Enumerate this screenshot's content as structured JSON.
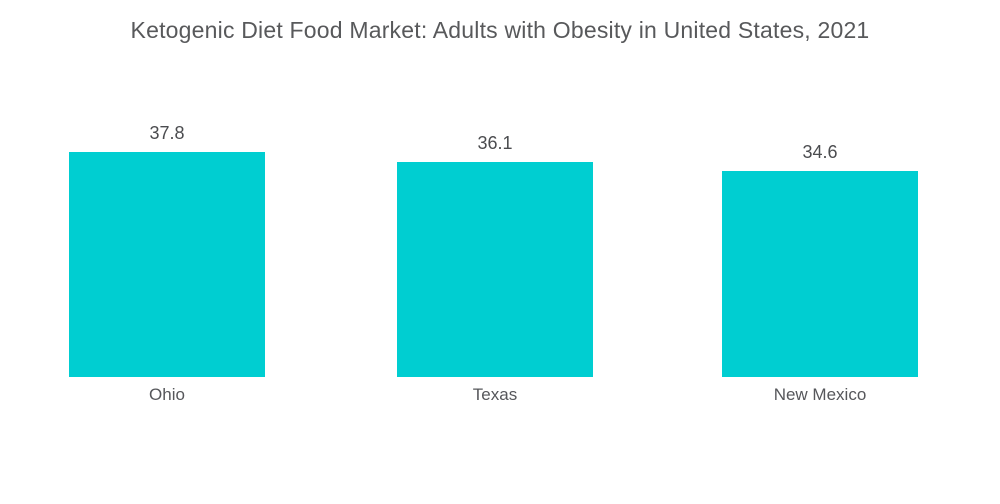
{
  "colors": {
    "bar": "#00ced1",
    "title_text": "#58595b",
    "value_text": "#4b4c4f",
    "category_text": "#56575b",
    "background": "#ffffff"
  },
  "chart_data": {
    "type": "bar",
    "title": "Ketogenic Diet Food Market: Adults with Obesity in United States, 2021",
    "categories": [
      "Ohio",
      "Texas",
      "New Mexico"
    ],
    "values": [
      37.8,
      36.1,
      34.6
    ],
    "value_labels": [
      "37.8",
      "36.1",
      "34.6"
    ],
    "xlabel": "",
    "ylabel": "",
    "ylim": [
      0,
      37.8
    ],
    "grid": false,
    "legend": false,
    "axes_visible": false,
    "bar_orientation": "vertical"
  }
}
